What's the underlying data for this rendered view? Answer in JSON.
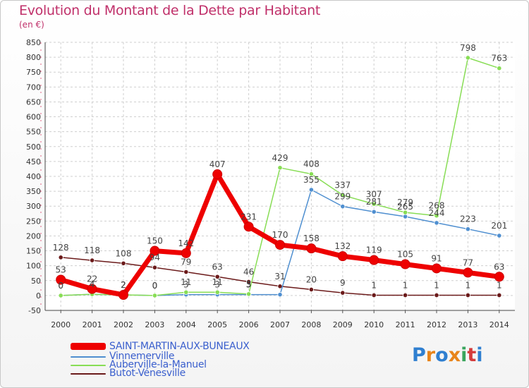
{
  "title": "Evolution du Montant de la Dette par Habitant",
  "unit_label": "(en €)",
  "logo_text": "Proxiti",
  "chart_data": {
    "type": "line",
    "title": "Evolution du Montant de la Dette par Habitant",
    "ylabel": "(en €)",
    "ylim": [
      -50,
      850
    ],
    "yticks": [
      -50,
      0,
      50,
      100,
      150,
      200,
      250,
      300,
      350,
      400,
      450,
      500,
      550,
      600,
      650,
      700,
      750,
      800,
      850
    ],
    "x": [
      "2000",
      "2001",
      "2002",
      "2003",
      "2004",
      "2005",
      "2006",
      "2007",
      "2008",
      "2009",
      "2010",
      "2011",
      "2012",
      "2013",
      "2014"
    ],
    "grid": true,
    "legend_placement": "bottom-left",
    "series": [
      {
        "name": "SAINT-MARTIN-AUX-BUNEAUX",
        "color": "#ee0000",
        "line_width": 7,
        "values": [
          53,
          22,
          2,
          150,
          142,
          407,
          231,
          170,
          158,
          132,
          119,
          105,
          91,
          77,
          63
        ],
        "labels": [
          "53",
          "22",
          "2",
          "150",
          "142",
          "407",
          "231",
          "170",
          "158",
          "132",
          "119",
          "105",
          "91",
          "77",
          "63"
        ]
      },
      {
        "name": "Vinnemerville",
        "color": "#4f8fd0",
        "line_width": 1.5,
        "values": [
          0,
          4,
          2,
          0,
          3,
          3,
          3,
          3,
          355,
          299,
          281,
          265,
          244,
          223,
          201
        ],
        "labels": [
          "0",
          "4",
          "2",
          "0",
          "3",
          "3",
          "3",
          "",
          "355",
          "299",
          "281",
          "265",
          "244",
          "223",
          "201"
        ]
      },
      {
        "name": "Auberville-la-Manuel",
        "color": "#88dd55",
        "line_width": 1.5,
        "values": [
          0,
          4,
          2,
          0,
          11,
          11,
          5,
          429,
          408,
          337,
          307,
          279,
          268,
          798,
          763
        ],
        "labels": [
          "0",
          "4",
          "2",
          "0",
          "11",
          "11",
          "5",
          "429",
          "408",
          "337",
          "307",
          "279",
          "268",
          "798",
          "763"
        ]
      },
      {
        "name": "Butot-Vénesville",
        "color": "#6b1a1a",
        "line_width": 1.5,
        "values": [
          128,
          118,
          108,
          94,
          79,
          63,
          46,
          31,
          20,
          9,
          1,
          1,
          1,
          1,
          1
        ],
        "labels": [
          "128",
          "118",
          "108",
          "94",
          "79",
          "63",
          "46",
          "31",
          "20",
          "9",
          "1",
          "1",
          "1",
          "1",
          "1"
        ]
      }
    ]
  }
}
